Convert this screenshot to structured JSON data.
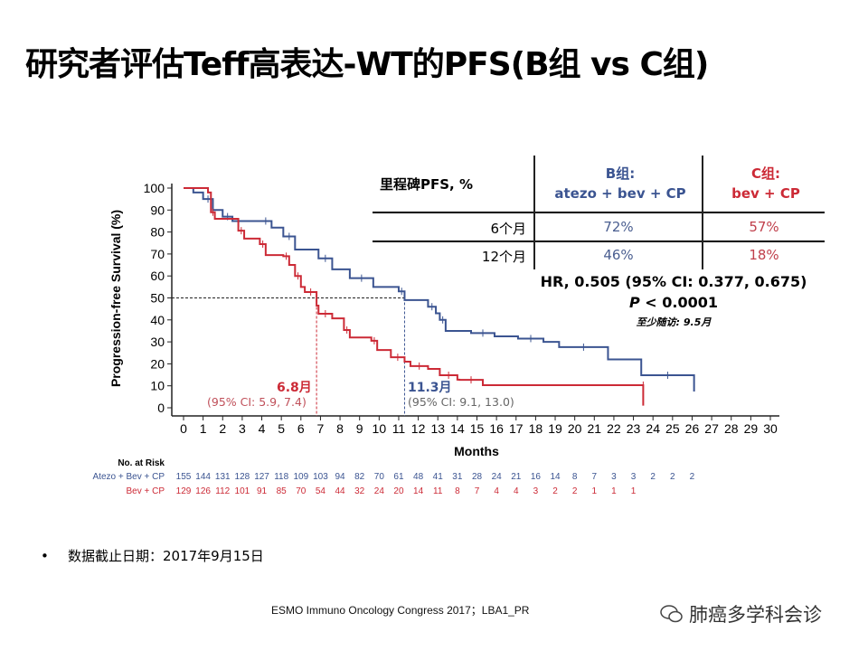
{
  "title": "研究者评估Teff高表达-WT的PFS(B组 vs C组)",
  "milestone_table": {
    "header_label": "里程碑PFS, %",
    "col_b_line1": "B组:",
    "col_b_line2": "atezo + bev + CP",
    "col_c_line1": "C组:",
    "col_c_line2": "bev + CP",
    "rows": [
      {
        "label": "6个月",
        "b": "72%",
        "c": "57%"
      },
      {
        "label": "12个月",
        "b": "46%",
        "c": "18%"
      }
    ]
  },
  "hr_text": "HR, 0.505 (95% CI: 0.377, 0.675)",
  "p_label": "P",
  "p_value": " < 0.0001",
  "followup": "至少随访: 9.5月",
  "median_c": {
    "value": "6.8月",
    "ci": "(95% CI: 5.9, 7.4)"
  },
  "median_b": {
    "value": "11.3月",
    "ci": "(95% CI: 9.1, 13.0)"
  },
  "bullet": "数据截止日期：2017年9月15日",
  "footer": "ESMO Immuno Oncology Congress 2017；LBA1_PR",
  "watermark": "肺癌多学科会诊",
  "colors": {
    "blue": "#3b5491",
    "red": "#cc2a36"
  },
  "chart_data": {
    "type": "line",
    "xlabel": "Months",
    "ylabel": "Progression-free Survival (%)",
    "xlim": [
      0,
      30
    ],
    "ylim": [
      0,
      100
    ],
    "xticks": [
      0,
      1,
      2,
      3,
      4,
      5,
      6,
      7,
      8,
      9,
      10,
      11,
      12,
      13,
      14,
      15,
      16,
      17,
      18,
      19,
      20,
      21,
      22,
      23,
      24,
      25,
      26,
      27,
      28,
      29,
      30
    ],
    "yticks": [
      0,
      10,
      20,
      30,
      40,
      50,
      60,
      70,
      80,
      90,
      100
    ],
    "median_line": 50,
    "medians": [
      6.8,
      11.3
    ],
    "series": [
      {
        "name": "Atezo + Bev + CP",
        "color": "#3b5491",
        "points": [
          [
            0,
            100
          ],
          [
            0.5,
            98
          ],
          [
            1,
            95
          ],
          [
            1.5,
            90
          ],
          [
            2,
            87
          ],
          [
            2.5,
            85
          ],
          [
            3.9,
            85
          ],
          [
            4.5,
            82
          ],
          [
            5.1,
            78
          ],
          [
            5.7,
            72
          ],
          [
            6.9,
            68
          ],
          [
            7.6,
            63
          ],
          [
            8.5,
            59
          ],
          [
            9.7,
            55
          ],
          [
            11,
            53
          ],
          [
            11.3,
            49
          ],
          [
            12.5,
            46
          ],
          [
            12.9,
            43
          ],
          [
            13.1,
            40
          ],
          [
            13.4,
            35
          ],
          [
            14.7,
            34
          ],
          [
            15.9,
            32.5
          ],
          [
            17.1,
            31.5
          ],
          [
            18.4,
            30
          ],
          [
            19.2,
            27.6
          ],
          [
            21.7,
            22
          ],
          [
            23.4,
            14.8
          ],
          [
            26.1,
            7.4
          ]
        ]
      },
      {
        "name": "Bev + CP",
        "color": "#cc2a36",
        "points": [
          [
            0,
            100
          ],
          [
            1.25,
            98
          ],
          [
            1.4,
            89
          ],
          [
            1.6,
            86
          ],
          [
            2.8,
            80.6
          ],
          [
            3.1,
            77
          ],
          [
            3.9,
            74.5
          ],
          [
            4.2,
            69.5
          ],
          [
            5.1,
            69
          ],
          [
            5.4,
            65
          ],
          [
            5.7,
            60
          ],
          [
            6,
            55
          ],
          [
            6.2,
            52.7
          ],
          [
            6.8,
            46.5
          ],
          [
            6.9,
            42.8
          ],
          [
            7.6,
            40.7
          ],
          [
            8.2,
            35.4
          ],
          [
            8.5,
            32
          ],
          [
            9.6,
            30.5
          ],
          [
            9.9,
            26.3
          ],
          [
            10.6,
            23
          ],
          [
            11.3,
            21
          ],
          [
            11.6,
            19
          ],
          [
            12.5,
            17.7
          ],
          [
            13.1,
            14.8
          ],
          [
            14,
            12.8
          ],
          [
            14.1,
            12.7
          ],
          [
            15.3,
            10.3
          ],
          [
            23.5,
            10.3
          ],
          [
            23.5,
            1
          ]
        ]
      }
    ],
    "risk_table": {
      "title": "No. at Risk",
      "rows": [
        {
          "name": "Atezo + Bev + CP",
          "values": [
            "155",
            "144",
            "131",
            "128",
            "127",
            "118",
            "109",
            "103",
            "94",
            "82",
            "70",
            "61",
            "48",
            "41",
            "31",
            "28",
            "24",
            "21",
            "16",
            "14",
            "8",
            "7",
            "3",
            "3",
            "2",
            "2",
            "2"
          ]
        },
        {
          "name": "Bev + CP",
          "values": [
            "129",
            "126",
            "112",
            "101",
            "91",
            "85",
            "70",
            "54",
            "44",
            "32",
            "24",
            "20",
            "14",
            "11",
            "8",
            "7",
            "4",
            "4",
            "3",
            "2",
            "2",
            "1",
            "1",
            "1"
          ]
        }
      ]
    }
  }
}
